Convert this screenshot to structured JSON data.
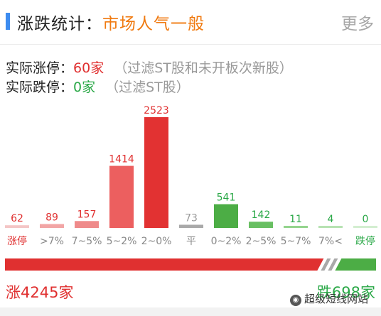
{
  "header": {
    "title": "涨跌统计：",
    "sentiment": "市场人气一般",
    "more": "更多"
  },
  "stats": {
    "limit_up_label": "实际涨停：",
    "limit_up_value": "60家",
    "limit_up_note": "（过滤ST股和未开板次新股）",
    "limit_down_label": "实际跌停：",
    "limit_down_value": "0家",
    "limit_down_note": "（过滤ST股）"
  },
  "chart_data": {
    "type": "bar",
    "categories": [
      "涨停",
      ">7%",
      "7~5%",
      "5~2%",
      "2~0%",
      "平",
      "0~2%",
      "2~5%",
      "5~7%",
      "7%<",
      "跌停"
    ],
    "values": [
      62,
      89,
      157,
      1414,
      2523,
      73,
      541,
      142,
      11,
      4,
      0
    ],
    "bar_colors": [
      "#f4c6c6",
      "#f2a5a5",
      "#ef8a8a",
      "#ec5f5f",
      "#e23232",
      "#a9a9a9",
      "#4cad45",
      "#68bf62",
      "#94d48e",
      "#b7e2b2",
      "#d3eed0"
    ],
    "value_colors": [
      "#e03030",
      "#e03030",
      "#e03030",
      "#e03030",
      "#e03030",
      "#9a9a9a",
      "#2aa847",
      "#2aa847",
      "#2aa847",
      "#2aa847",
      "#2aa847"
    ],
    "label_colors": [
      "#e03030",
      "#888888",
      "#888888",
      "#888888",
      "#888888",
      "#888888",
      "#888888",
      "#888888",
      "#888888",
      "#888888",
      "#2aa847"
    ],
    "ylim": [
      0,
      2523
    ]
  },
  "ratio_bar": {
    "up_share": 0.859,
    "up_color": "#e03030",
    "flat_color": "#a9a9a9",
    "down_color": "#4cad45"
  },
  "totals": {
    "up": "涨4245家",
    "down": "跌698家"
  },
  "watermark": {
    "text": "超级短线网站"
  },
  "icons": {
    "watermark": "wechat-icon"
  }
}
